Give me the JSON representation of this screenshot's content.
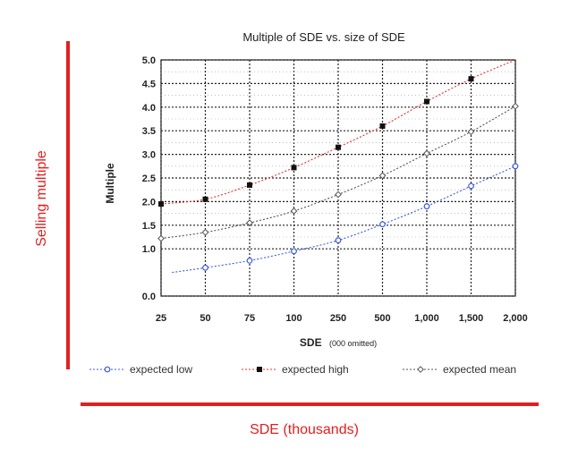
{
  "chart_data": {
    "type": "line",
    "title": "Multiple of SDE vs. size of SDE",
    "xlabel": "SDE",
    "xlabel_note": "(000 omitted)",
    "ylabel": "Multiple",
    "categories": [
      "25",
      "50",
      "75",
      "100",
      "250",
      "500",
      "1,000",
      "1,500",
      "2,000"
    ],
    "y_ticks": [
      "5.0",
      "4.5",
      "4.0",
      "3.5",
      "3.0",
      "2.5",
      "2.0",
      "1.5",
      "1.0",
      "0.0"
    ],
    "grid": true,
    "legend_position": "bottom",
    "series": [
      {
        "name": "expected low",
        "color": "#3b5bdb",
        "marker": "circle-open",
        "values": [
          null,
          0.6,
          0.75,
          0.95,
          1.18,
          1.52,
          1.9,
          2.33,
          2.75
        ],
        "line_start_x": 0.25,
        "line_start_y": 0.5
      },
      {
        "name": "expected high",
        "color": "#e03131",
        "marker": "square-filled",
        "values": [
          1.95,
          2.05,
          2.35,
          2.72,
          3.15,
          3.6,
          4.12,
          4.6,
          5.0
        ]
      },
      {
        "name": "expected mean",
        "color": "#555555",
        "marker": "diamond-open",
        "values": [
          1.22,
          1.35,
          1.55,
          1.8,
          2.15,
          2.55,
          3.02,
          3.48,
          4.02
        ]
      }
    ]
  },
  "annotations": {
    "y_label": "Selling multiple",
    "x_label": "SDE (thousands)",
    "color": "#e02020"
  }
}
